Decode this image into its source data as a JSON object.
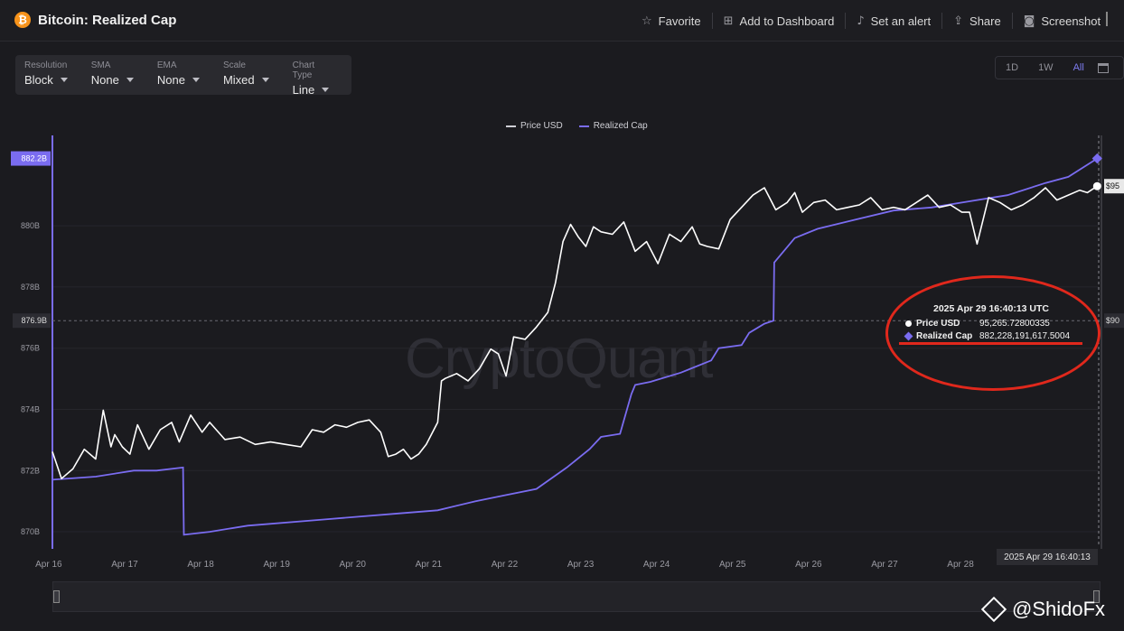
{
  "header": {
    "coin_symbol": "₿",
    "title": "Bitcoin: Realized Cap",
    "actions": [
      {
        "label": "Favorite",
        "icon": "star-icon"
      },
      {
        "label": "Add to Dashboard",
        "icon": "dashboard-add-icon"
      },
      {
        "label": "Set an alert",
        "icon": "bell-icon"
      },
      {
        "label": "Share",
        "icon": "share-icon"
      },
      {
        "label": "Screenshot",
        "icon": "camera-icon"
      }
    ]
  },
  "controls": [
    {
      "label": "Resolution",
      "value": "Block"
    },
    {
      "label": "SMA",
      "value": "None"
    },
    {
      "label": "EMA",
      "value": "None"
    },
    {
      "label": "Scale",
      "value": "Mixed"
    },
    {
      "label": "Chart Type",
      "value": "Line"
    }
  ],
  "ranges": {
    "items": [
      "1D",
      "1W",
      "All"
    ],
    "active": "All"
  },
  "watermark": "CryptoQuant",
  "colors": {
    "price": "#ffffff",
    "realized_cap": "#7a6cf0",
    "annotation": "#e0281c",
    "accent": "#7d7cf0"
  },
  "tooltip": {
    "date": "2025 Apr 29 16:40:13 UTC",
    "rows": [
      {
        "name": "Price USD",
        "value": "95,265.72800335"
      },
      {
        "name": "Realized Cap",
        "value": "882,228,191,617.5004"
      }
    ]
  },
  "cursor_date": "2025 Apr 29 16:40:13",
  "credit": "@ShidoFx",
  "chart_data": {
    "type": "line",
    "legend": [
      "Price USD",
      "Realized Cap"
    ],
    "legend_position": "top-center",
    "x_ticks": [
      "Apr 16",
      "Apr 17",
      "Apr 18",
      "Apr 19",
      "Apr 20",
      "Apr 21",
      "Apr 22",
      "Apr 23",
      "Apr 24",
      "Apr 25",
      "Apr 26",
      "Apr 27",
      "Apr 28"
    ],
    "y_left": {
      "ticks": [
        "870B",
        "872B",
        "874B",
        "876B",
        "878B",
        "880B"
      ],
      "tick_values": [
        870,
        872,
        874,
        876,
        878,
        880
      ],
      "ylim": [
        869.5,
        882.6
      ],
      "unit": "B"
    },
    "y_left_markers": {
      "current": "882.2B",
      "crosshair": "876.9B",
      "crosshair_value": 876.9
    },
    "y_right": {
      "ylim": [
        80500,
        96900
      ],
      "crosshair_label": "$90",
      "current_label": "$95"
    },
    "grid": true,
    "xlim": [
      15.93,
      29.7
    ],
    "series": [
      {
        "name": "Realized Cap",
        "unit": "USD billions",
        "x": [
          15.93,
          16.5,
          17.0,
          17.3,
          17.65,
          17.66,
          18.0,
          18.5,
          19.5,
          20.5,
          21.0,
          21.5,
          21.9,
          22.3,
          22.7,
          23.0,
          23.15,
          23.4,
          23.55,
          23.6,
          23.8,
          24.2,
          24.6,
          24.7,
          25.0,
          25.1,
          25.3,
          25.42,
          25.43,
          25.7,
          26.0,
          26.5,
          27.0,
          27.5,
          28.0,
          28.5,
          29.0,
          29.3,
          29.68
        ],
        "y": [
          871.7,
          871.8,
          872.0,
          872.0,
          872.1,
          869.9,
          870.0,
          870.2,
          870.4,
          870.6,
          870.7,
          871.0,
          871.2,
          871.4,
          872.1,
          872.7,
          873.1,
          873.2,
          874.5,
          874.8,
          874.9,
          875.2,
          875.6,
          876.0,
          876.1,
          876.5,
          876.8,
          876.9,
          878.8,
          879.6,
          879.9,
          880.2,
          880.5,
          880.6,
          880.8,
          881.0,
          881.4,
          881.6,
          882.2
        ]
      },
      {
        "name": "Price USD",
        "unit": "USD",
        "x": [
          15.93,
          16.05,
          16.2,
          16.35,
          16.5,
          16.6,
          16.7,
          16.75,
          16.85,
          16.95,
          17.05,
          17.2,
          17.35,
          17.5,
          17.6,
          17.75,
          17.9,
          18.0,
          18.2,
          18.4,
          18.6,
          18.8,
          19.0,
          19.2,
          19.35,
          19.5,
          19.65,
          19.8,
          19.95,
          20.1,
          20.25,
          20.35,
          20.45,
          20.55,
          20.65,
          20.75,
          20.85,
          20.95,
          21.0,
          21.05,
          21.1,
          21.25,
          21.4,
          21.55,
          21.7,
          21.8,
          21.9,
          22.0,
          22.15,
          22.3,
          22.45,
          22.55,
          22.65,
          22.75,
          22.85,
          22.95,
          23.05,
          23.15,
          23.3,
          23.45,
          23.6,
          23.75,
          23.9,
          24.05,
          24.2,
          24.35,
          24.45,
          24.55,
          24.7,
          24.85,
          25.0,
          25.15,
          25.3,
          25.45,
          25.6,
          25.7,
          25.8,
          25.95,
          26.1,
          26.25,
          26.4,
          26.55,
          26.7,
          26.85,
          27.0,
          27.15,
          27.3,
          27.45,
          27.6,
          27.75,
          27.9,
          28.0,
          28.1,
          28.25,
          28.4,
          28.55,
          28.7,
          28.85,
          29.0,
          29.15,
          29.3,
          29.45,
          29.55,
          29.68
        ],
        "y": [
          84400,
          83300,
          83700,
          84500,
          84100,
          86100,
          84600,
          85100,
          84600,
          84300,
          85500,
          84500,
          85300,
          85600,
          84800,
          85900,
          85200,
          85600,
          84900,
          85000,
          84700,
          84800,
          84700,
          84600,
          85300,
          85200,
          85500,
          85400,
          85600,
          85700,
          85200,
          84200,
          84300,
          84500,
          84100,
          84300,
          84700,
          85300,
          85600,
          87300,
          87400,
          87600,
          87300,
          87800,
          88600,
          88400,
          87500,
          89100,
          89000,
          89500,
          90100,
          91300,
          93000,
          93700,
          93200,
          92800,
          93600,
          93400,
          93300,
          93800,
          92600,
          93000,
          92100,
          93300,
          93000,
          93600,
          92900,
          92800,
          92700,
          93900,
          94400,
          94900,
          95200,
          94300,
          94600,
          95000,
          94200,
          94600,
          94700,
          94300,
          94400,
          94500,
          94800,
          94300,
          94400,
          94300,
          94600,
          94900,
          94400,
          94500,
          94200,
          94200,
          92900,
          94800,
          94600,
          94300,
          94500,
          94800,
          95200,
          94700,
          94900,
          95100,
          95000,
          95266
        ]
      }
    ]
  }
}
